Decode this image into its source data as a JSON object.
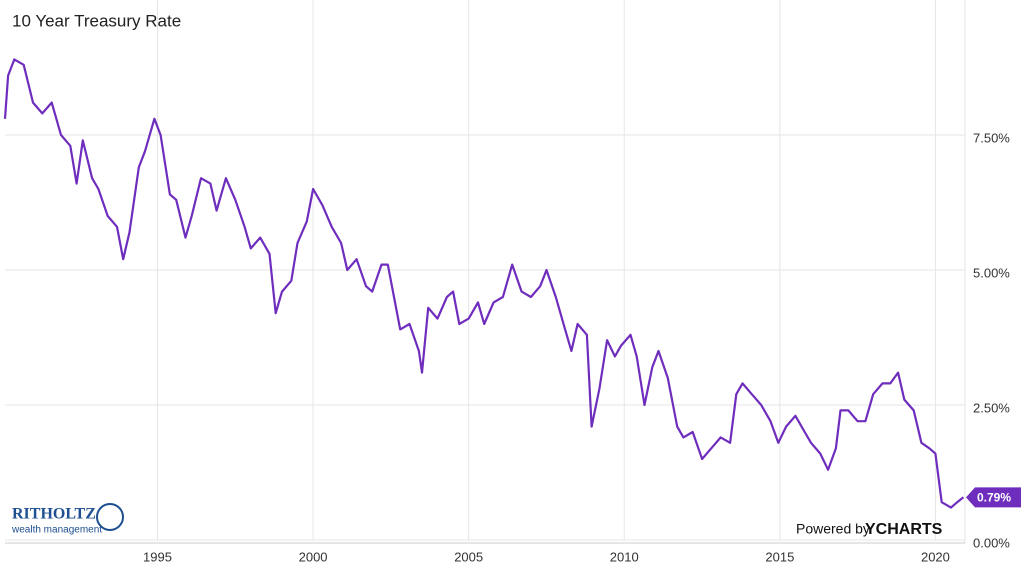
{
  "chart_data": {
    "type": "line",
    "title": "10 Year Treasury Rate",
    "color": "#6f2dbd",
    "x": [
      1990.1,
      1990.2,
      1990.4,
      1990.7,
      1991.0,
      1991.3,
      1991.6,
      1991.9,
      1992.2,
      1992.4,
      1992.6,
      1992.9,
      1993.1,
      1993.4,
      1993.7,
      1993.9,
      1994.1,
      1994.4,
      1994.6,
      1994.9,
      1995.1,
      1995.4,
      1995.6,
      1995.9,
      1996.1,
      1996.4,
      1996.7,
      1996.9,
      1997.2,
      1997.5,
      1997.8,
      1998.0,
      1998.3,
      1998.6,
      1998.8,
      1999.0,
      1999.3,
      1999.5,
      1999.8,
      2000.0,
      2000.3,
      2000.6,
      2000.9,
      2001.1,
      2001.4,
      2001.7,
      2001.9,
      2002.2,
      2002.4,
      2002.6,
      2002.8,
      2003.1,
      2003.4,
      2003.5,
      2003.7,
      2004.0,
      2004.3,
      2004.5,
      2004.7,
      2005.0,
      2005.3,
      2005.5,
      2005.8,
      2006.1,
      2006.4,
      2006.7,
      2007.0,
      2007.3,
      2007.5,
      2007.8,
      2008.1,
      2008.3,
      2008.5,
      2008.8,
      2008.95,
      2009.2,
      2009.45,
      2009.7,
      2009.9,
      2010.2,
      2010.4,
      2010.65,
      2010.9,
      2011.1,
      2011.4,
      2011.7,
      2011.9,
      2012.2,
      2012.5,
      2012.8,
      2013.1,
      2013.4,
      2013.6,
      2013.8,
      2014.1,
      2014.4,
      2014.7,
      2014.95,
      2015.2,
      2015.5,
      2015.8,
      2016.0,
      2016.3,
      2016.55,
      2016.8,
      2016.95,
      2017.2,
      2017.5,
      2017.75,
      2018.0,
      2018.3,
      2018.55,
      2018.8,
      2019.0,
      2019.3,
      2019.55,
      2019.8,
      2020.0,
      2020.2,
      2020.5,
      2020.7,
      2020.9
    ],
    "values": [
      7.8,
      8.6,
      8.9,
      8.8,
      8.1,
      7.9,
      8.1,
      7.5,
      7.3,
      6.6,
      7.4,
      6.7,
      6.5,
      6.0,
      5.8,
      5.2,
      5.7,
      6.9,
      7.2,
      7.8,
      7.5,
      6.4,
      6.3,
      5.6,
      6.0,
      6.7,
      6.6,
      6.1,
      6.7,
      6.3,
      5.8,
      5.4,
      5.6,
      5.3,
      4.2,
      4.6,
      4.8,
      5.5,
      5.9,
      6.5,
      6.2,
      5.8,
      5.5,
      5.0,
      5.2,
      4.7,
      4.6,
      5.1,
      5.1,
      4.5,
      3.9,
      4.0,
      3.5,
      3.1,
      4.3,
      4.1,
      4.5,
      4.6,
      4.0,
      4.1,
      4.4,
      4.0,
      4.4,
      4.5,
      5.1,
      4.6,
      4.5,
      4.7,
      5.0,
      4.5,
      3.9,
      3.5,
      4.0,
      3.8,
      2.1,
      2.8,
      3.7,
      3.4,
      3.6,
      3.8,
      3.4,
      2.5,
      3.2,
      3.5,
      3.0,
      2.1,
      1.9,
      2.0,
      1.5,
      1.7,
      1.9,
      1.8,
      2.7,
      2.9,
      2.7,
      2.5,
      2.2,
      1.8,
      2.1,
      2.3,
      2.0,
      1.8,
      1.6,
      1.3,
      1.7,
      2.4,
      2.4,
      2.2,
      2.2,
      2.7,
      2.9,
      2.9,
      3.1,
      2.6,
      2.4,
      1.8,
      1.7,
      1.6,
      0.7,
      0.6,
      0.7,
      0.79
    ],
    "xlim": [
      1990.1,
      2020.95
    ],
    "xticks": [
      1995,
      2000,
      2005,
      2010,
      2015,
      2020
    ],
    "ylim": [
      0,
      10
    ],
    "yticks": [
      {
        "value": 0,
        "label": "0.00%"
      },
      {
        "value": 2.5,
        "label": "2.50%"
      },
      {
        "value": 5,
        "label": "5.00%"
      },
      {
        "value": 7.5,
        "label": "7.50%"
      }
    ],
    "grid": true,
    "end_label": {
      "value": 0.79,
      "label": "0.79%"
    },
    "credits": {
      "left": "RITHOLTZ",
      "left_sub": "wealth management",
      "powered": "Powered by",
      "brand": "YCHARTS"
    }
  }
}
